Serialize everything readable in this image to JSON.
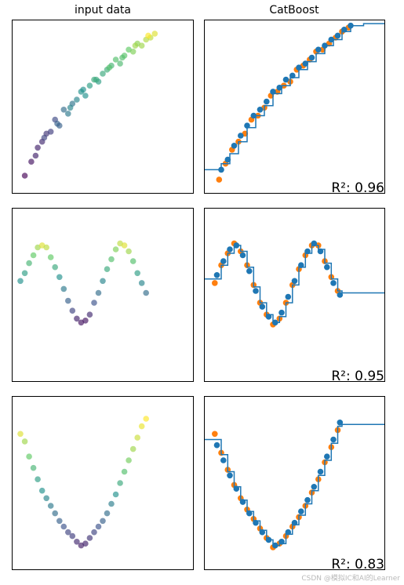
{
  "headers": {
    "left": "input data",
    "right": "CatBoost"
  },
  "watermark": "CSDN @模拟IC和AI的Learner",
  "colors": {
    "blue": "#1f77b4",
    "orange": "#ff7f0e",
    "viridis": [
      "#440154",
      "#3b528b",
      "#21918c",
      "#5ec962",
      "#fde725"
    ]
  },
  "chart_data": [
    {
      "type": "scatter",
      "panel": "input data",
      "row": 1,
      "xlim": [
        -0.1,
        4.1
      ],
      "ylim": [
        -0.25,
        4.1
      ],
      "grid": false,
      "ticks": false,
      "colormap": "viridis",
      "points": [
        [
          0.2,
          0.2,
          0.0
        ],
        [
          0.35,
          0.55,
          0.05
        ],
        [
          0.5,
          0.9,
          0.1
        ],
        [
          0.6,
          1.05,
          0.12
        ],
        [
          0.7,
          1.25,
          0.15
        ],
        [
          0.8,
          1.3,
          0.18
        ],
        [
          0.9,
          1.6,
          0.22
        ],
        [
          1.0,
          1.45,
          0.3
        ],
        [
          1.1,
          1.85,
          0.35
        ],
        [
          1.2,
          1.75,
          0.4
        ],
        [
          1.3,
          2.0,
          0.38
        ],
        [
          1.4,
          2.1,
          0.45
        ],
        [
          1.5,
          2.3,
          0.5
        ],
        [
          1.6,
          2.2,
          0.5
        ],
        [
          1.7,
          2.45,
          0.55
        ],
        [
          1.8,
          2.6,
          0.6
        ],
        [
          1.9,
          2.55,
          0.55
        ],
        [
          2.0,
          2.75,
          0.6
        ],
        [
          2.1,
          2.85,
          0.62
        ],
        [
          2.2,
          2.95,
          0.65
        ],
        [
          2.3,
          3.1,
          0.7
        ],
        [
          2.4,
          3.0,
          0.68
        ],
        [
          2.5,
          3.2,
          0.72
        ],
        [
          2.6,
          3.35,
          0.75
        ],
        [
          2.7,
          3.3,
          0.8
        ],
        [
          2.8,
          3.5,
          0.82
        ],
        [
          2.9,
          3.45,
          0.85
        ],
        [
          3.0,
          3.6,
          0.88
        ],
        [
          3.1,
          3.65,
          0.9
        ],
        [
          3.2,
          3.75,
          0.95
        ],
        [
          0.45,
          0.7,
          0.1
        ],
        [
          0.65,
          1.15,
          0.2
        ],
        [
          0.95,
          1.5,
          0.3
        ],
        [
          1.25,
          1.9,
          0.45
        ],
        [
          1.55,
          2.35,
          0.5
        ],
        [
          1.85,
          2.6,
          0.6
        ],
        [
          2.15,
          2.9,
          0.7
        ],
        [
          2.45,
          3.15,
          0.7
        ],
        [
          2.75,
          3.45,
          0.85
        ],
        [
          3.05,
          3.7,
          1.0
        ]
      ]
    },
    {
      "type": "scatter_with_step_line",
      "panel": "CatBoost",
      "row": 1,
      "score_label": "R²: 0.96",
      "xlim": [
        -0.1,
        4.1
      ],
      "ylim": [
        -0.25,
        4.1
      ],
      "train_points": [
        [
          0.3,
          0.35
        ],
        [
          0.45,
          0.6
        ],
        [
          0.6,
          0.95
        ],
        [
          0.75,
          1.2
        ],
        [
          0.9,
          1.45
        ],
        [
          1.05,
          1.7
        ],
        [
          1.2,
          1.85
        ],
        [
          1.35,
          2.05
        ],
        [
          1.5,
          2.3
        ],
        [
          1.65,
          2.4
        ],
        [
          1.8,
          2.6
        ],
        [
          1.95,
          2.7
        ],
        [
          2.1,
          2.9
        ],
        [
          2.25,
          3.0
        ],
        [
          2.4,
          3.15
        ],
        [
          2.55,
          3.35
        ],
        [
          2.7,
          3.45
        ],
        [
          2.85,
          3.6
        ],
        [
          3.0,
          3.7
        ],
        [
          3.15,
          3.85
        ],
        [
          3.3,
          3.95
        ]
      ],
      "test_points": [
        [
          0.25,
          0.1
        ],
        [
          0.4,
          0.5
        ],
        [
          0.55,
          0.85
        ],
        [
          0.7,
          1.05
        ],
        [
          0.85,
          1.25
        ],
        [
          1.0,
          1.6
        ],
        [
          1.15,
          1.7
        ],
        [
          1.3,
          1.9
        ],
        [
          1.45,
          2.2
        ],
        [
          1.6,
          2.3
        ],
        [
          1.75,
          2.45
        ],
        [
          1.9,
          2.55
        ],
        [
          2.05,
          2.85
        ],
        [
          2.2,
          2.95
        ],
        [
          2.35,
          3.1
        ],
        [
          2.5,
          3.3
        ],
        [
          2.65,
          3.35
        ],
        [
          2.8,
          3.5
        ],
        [
          2.95,
          3.65
        ],
        [
          3.1,
          3.8
        ],
        [
          3.25,
          3.9
        ]
      ],
      "prediction": [
        [
          -0.1,
          0.35
        ],
        [
          0.2,
          0.35
        ],
        [
          0.3,
          0.5
        ],
        [
          0.5,
          0.75
        ],
        [
          0.7,
          1.05
        ],
        [
          0.9,
          1.4
        ],
        [
          1.1,
          1.7
        ],
        [
          1.3,
          1.95
        ],
        [
          1.5,
          2.25
        ],
        [
          1.7,
          2.45
        ],
        [
          1.9,
          2.65
        ],
        [
          2.1,
          2.85
        ],
        [
          2.3,
          3.05
        ],
        [
          2.5,
          3.25
        ],
        [
          2.7,
          3.45
        ],
        [
          2.9,
          3.6
        ],
        [
          3.1,
          3.8
        ],
        [
          3.3,
          3.95
        ],
        [
          3.6,
          4.0
        ],
        [
          4.1,
          4.0
        ]
      ]
    },
    {
      "type": "scatter",
      "panel": "input data",
      "row": 2,
      "xlim": [
        -0.1,
        4.1
      ],
      "ylim": [
        -2.6,
        1.8
      ],
      "grid": false,
      "ticks": false,
      "colormap": "viridis",
      "points": [
        [
          0.1,
          -0.05,
          0.5
        ],
        [
          0.2,
          0.15,
          0.55
        ],
        [
          0.3,
          0.4,
          0.65
        ],
        [
          0.4,
          0.6,
          0.75
        ],
        [
          0.5,
          0.8,
          0.85
        ],
        [
          0.6,
          0.85,
          0.95
        ],
        [
          0.7,
          0.8,
          0.9
        ],
        [
          0.8,
          0.55,
          0.75
        ],
        [
          0.9,
          0.3,
          0.6
        ],
        [
          1.0,
          0.05,
          0.5
        ],
        [
          1.1,
          -0.25,
          0.4
        ],
        [
          1.2,
          -0.55,
          0.3
        ],
        [
          1.3,
          -0.8,
          0.2
        ],
        [
          1.4,
          -1.0,
          0.1
        ],
        [
          1.5,
          -1.1,
          0.05
        ],
        [
          1.6,
          -1.05,
          0.05
        ],
        [
          1.7,
          -0.9,
          0.12
        ],
        [
          1.8,
          -0.6,
          0.25
        ],
        [
          1.9,
          -0.35,
          0.35
        ],
        [
          2.0,
          -0.05,
          0.45
        ],
        [
          2.1,
          0.25,
          0.6
        ],
        [
          2.2,
          0.5,
          0.7
        ],
        [
          2.3,
          0.75,
          0.8
        ],
        [
          2.4,
          0.9,
          0.9
        ],
        [
          2.5,
          0.85,
          0.95
        ],
        [
          2.6,
          0.7,
          0.85
        ],
        [
          2.7,
          0.45,
          0.7
        ],
        [
          2.8,
          0.15,
          0.55
        ],
        [
          2.9,
          -0.1,
          0.45
        ],
        [
          3.0,
          -0.35,
          0.35
        ]
      ]
    },
    {
      "type": "scatter_with_step_line",
      "panel": "CatBoost",
      "row": 2,
      "score_label": "R²: 0.95",
      "xlim": [
        -0.1,
        4.1
      ],
      "ylim": [
        -2.6,
        1.8
      ],
      "train_points": [
        [
          0.2,
          0.1
        ],
        [
          0.35,
          0.45
        ],
        [
          0.5,
          0.75
        ],
        [
          0.65,
          0.85
        ],
        [
          0.8,
          0.6
        ],
        [
          0.95,
          0.2
        ],
        [
          1.1,
          -0.3
        ],
        [
          1.25,
          -0.7
        ],
        [
          1.4,
          -0.95
        ],
        [
          1.55,
          -1.1
        ],
        [
          1.7,
          -0.85
        ],
        [
          1.85,
          -0.45
        ],
        [
          2.0,
          -0.05
        ],
        [
          2.15,
          0.35
        ],
        [
          2.3,
          0.7
        ],
        [
          2.45,
          0.9
        ],
        [
          2.6,
          0.7
        ],
        [
          2.75,
          0.3
        ],
        [
          2.9,
          -0.1
        ],
        [
          3.05,
          -0.4
        ]
      ],
      "test_points": [
        [
          0.15,
          -0.1
        ],
        [
          0.3,
          0.35
        ],
        [
          0.45,
          0.65
        ],
        [
          0.6,
          0.9
        ],
        [
          0.75,
          0.7
        ],
        [
          0.9,
          0.35
        ],
        [
          1.05,
          -0.15
        ],
        [
          1.2,
          -0.6
        ],
        [
          1.35,
          -0.9
        ],
        [
          1.5,
          -1.15
        ],
        [
          1.65,
          -1.0
        ],
        [
          1.8,
          -0.6
        ],
        [
          1.95,
          -0.15
        ],
        [
          2.1,
          0.25
        ],
        [
          2.25,
          0.6
        ],
        [
          2.4,
          0.85
        ],
        [
          2.55,
          0.85
        ],
        [
          2.7,
          0.45
        ],
        [
          2.85,
          0.05
        ],
        [
          3.0,
          -0.3
        ]
      ],
      "prediction": [
        [
          -0.1,
          0.0
        ],
        [
          0.15,
          0.0
        ],
        [
          0.3,
          0.35
        ],
        [
          0.45,
          0.65
        ],
        [
          0.6,
          0.85
        ],
        [
          0.75,
          0.7
        ],
        [
          0.9,
          0.3
        ],
        [
          1.05,
          -0.2
        ],
        [
          1.2,
          -0.6
        ],
        [
          1.35,
          -0.9
        ],
        [
          1.5,
          -1.1
        ],
        [
          1.65,
          -0.95
        ],
        [
          1.8,
          -0.6
        ],
        [
          1.95,
          -0.15
        ],
        [
          2.1,
          0.3
        ],
        [
          2.25,
          0.65
        ],
        [
          2.4,
          0.85
        ],
        [
          2.55,
          0.75
        ],
        [
          2.7,
          0.4
        ],
        [
          2.85,
          0.0
        ],
        [
          3.0,
          -0.3
        ],
        [
          3.1,
          -0.35
        ],
        [
          4.1,
          -0.35
        ]
      ]
    },
    {
      "type": "scatter",
      "panel": "input data",
      "row": 3,
      "xlim": [
        -0.1,
        4.1
      ],
      "ylim": [
        -0.3,
        4.3
      ],
      "grid": false,
      "ticks": false,
      "colormap": "viridis",
      "points": [
        [
          0.1,
          3.3,
          0.95
        ],
        [
          0.2,
          3.1,
          0.85
        ],
        [
          0.3,
          2.7,
          0.75
        ],
        [
          0.4,
          2.4,
          0.65
        ],
        [
          0.5,
          2.1,
          0.55
        ],
        [
          0.6,
          1.8,
          0.5
        ],
        [
          0.7,
          1.6,
          0.45
        ],
        [
          0.8,
          1.4,
          0.4
        ],
        [
          0.9,
          1.2,
          0.35
        ],
        [
          1.0,
          1.0,
          0.3
        ],
        [
          1.1,
          0.85,
          0.25
        ],
        [
          1.2,
          0.7,
          0.2
        ],
        [
          1.3,
          0.6,
          0.18
        ],
        [
          1.4,
          0.45,
          0.12
        ],
        [
          1.5,
          0.35,
          0.08
        ],
        [
          1.6,
          0.4,
          0.1
        ],
        [
          1.7,
          0.55,
          0.15
        ],
        [
          1.8,
          0.7,
          0.2
        ],
        [
          1.9,
          0.85,
          0.25
        ],
        [
          2.0,
          1.0,
          0.3
        ],
        [
          2.1,
          1.2,
          0.35
        ],
        [
          2.2,
          1.45,
          0.42
        ],
        [
          2.3,
          1.7,
          0.5
        ],
        [
          2.4,
          2.0,
          0.6
        ],
        [
          2.5,
          2.3,
          0.7
        ],
        [
          2.6,
          2.6,
          0.78
        ],
        [
          2.7,
          2.9,
          0.85
        ],
        [
          2.8,
          3.2,
          0.92
        ],
        [
          2.9,
          3.5,
          0.97
        ],
        [
          3.0,
          3.7,
          1.0
        ]
      ]
    },
    {
      "type": "scatter_with_step_line",
      "panel": "CatBoost",
      "row": 3,
      "score_label": "R²: 0.83",
      "xlim": [
        -0.1,
        4.1
      ],
      "ylim": [
        -0.3,
        4.3
      ],
      "train_points": [
        [
          0.2,
          3.0
        ],
        [
          0.35,
          2.6
        ],
        [
          0.5,
          2.2
        ],
        [
          0.65,
          1.85
        ],
        [
          0.8,
          1.5
        ],
        [
          0.95,
          1.2
        ],
        [
          1.1,
          0.95
        ],
        [
          1.25,
          0.7
        ],
        [
          1.4,
          0.5
        ],
        [
          1.55,
          0.35
        ],
        [
          1.7,
          0.45
        ],
        [
          1.85,
          0.7
        ],
        [
          2.0,
          0.95
        ],
        [
          2.15,
          1.25
        ],
        [
          2.3,
          1.55
        ],
        [
          2.45,
          1.9
        ],
        [
          2.6,
          2.3
        ],
        [
          2.75,
          2.7
        ],
        [
          2.9,
          3.15
        ],
        [
          3.05,
          3.6
        ]
      ],
      "test_points": [
        [
          0.15,
          3.3
        ],
        [
          0.3,
          2.8
        ],
        [
          0.45,
          2.35
        ],
        [
          0.6,
          1.95
        ],
        [
          0.75,
          1.6
        ],
        [
          0.9,
          1.3
        ],
        [
          1.05,
          1.05
        ],
        [
          1.2,
          0.8
        ],
        [
          1.35,
          0.55
        ],
        [
          1.5,
          0.3
        ],
        [
          1.65,
          0.4
        ],
        [
          1.8,
          0.6
        ],
        [
          1.95,
          0.85
        ],
        [
          2.1,
          1.1
        ],
        [
          2.25,
          1.4
        ],
        [
          2.4,
          1.75
        ],
        [
          2.55,
          2.1
        ],
        [
          2.7,
          2.55
        ],
        [
          2.85,
          2.95
        ],
        [
          3.0,
          3.4
        ]
      ],
      "prediction": [
        [
          -0.1,
          3.15
        ],
        [
          0.2,
          3.15
        ],
        [
          0.3,
          2.75
        ],
        [
          0.45,
          2.3
        ],
        [
          0.6,
          1.9
        ],
        [
          0.75,
          1.55
        ],
        [
          0.9,
          1.25
        ],
        [
          1.05,
          1.0
        ],
        [
          1.2,
          0.75
        ],
        [
          1.35,
          0.5
        ],
        [
          1.5,
          0.35
        ],
        [
          1.65,
          0.4
        ],
        [
          1.8,
          0.65
        ],
        [
          1.95,
          0.9
        ],
        [
          2.1,
          1.15
        ],
        [
          2.25,
          1.45
        ],
        [
          2.4,
          1.8
        ],
        [
          2.55,
          2.2
        ],
        [
          2.7,
          2.6
        ],
        [
          2.85,
          3.05
        ],
        [
          3.0,
          3.5
        ],
        [
          3.1,
          3.55
        ],
        [
          4.1,
          3.55
        ]
      ]
    }
  ]
}
